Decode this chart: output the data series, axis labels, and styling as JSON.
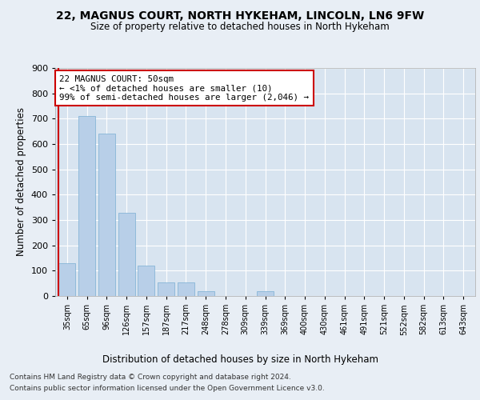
{
  "title1": "22, MAGNUS COURT, NORTH HYKEHAM, LINCOLN, LN6 9FW",
  "title2": "Size of property relative to detached houses in North Hykeham",
  "xlabel": "Distribution of detached houses by size in North Hykeham",
  "ylabel": "Number of detached properties",
  "bins": [
    "35sqm",
    "65sqm",
    "96sqm",
    "126sqm",
    "157sqm",
    "187sqm",
    "217sqm",
    "248sqm",
    "278sqm",
    "309sqm",
    "339sqm",
    "369sqm",
    "400sqm",
    "430sqm",
    "461sqm",
    "491sqm",
    "521sqm",
    "552sqm",
    "582sqm",
    "613sqm",
    "643sqm"
  ],
  "values": [
    130,
    710,
    640,
    330,
    120,
    55,
    55,
    18,
    0,
    0,
    18,
    0,
    0,
    0,
    0,
    0,
    0,
    0,
    0,
    0,
    0
  ],
  "bar_color": "#b8cfe8",
  "bar_edge_color": "#7aafd4",
  "highlight_line_color": "#cc0000",
  "annotation_text": "22 MAGNUS COURT: 50sqm\n← <1% of detached houses are smaller (10)\n99% of semi-detached houses are larger (2,046) →",
  "annotation_box_facecolor": "#ffffff",
  "annotation_box_edgecolor": "#cc0000",
  "ylim": [
    0,
    900
  ],
  "yticks": [
    0,
    100,
    200,
    300,
    400,
    500,
    600,
    700,
    800,
    900
  ],
  "footer1": "Contains HM Land Registry data © Crown copyright and database right 2024.",
  "footer2": "Contains public sector information licensed under the Open Government Licence v3.0.",
  "bg_color": "#e8eef5",
  "plot_bg_color": "#d8e4f0"
}
